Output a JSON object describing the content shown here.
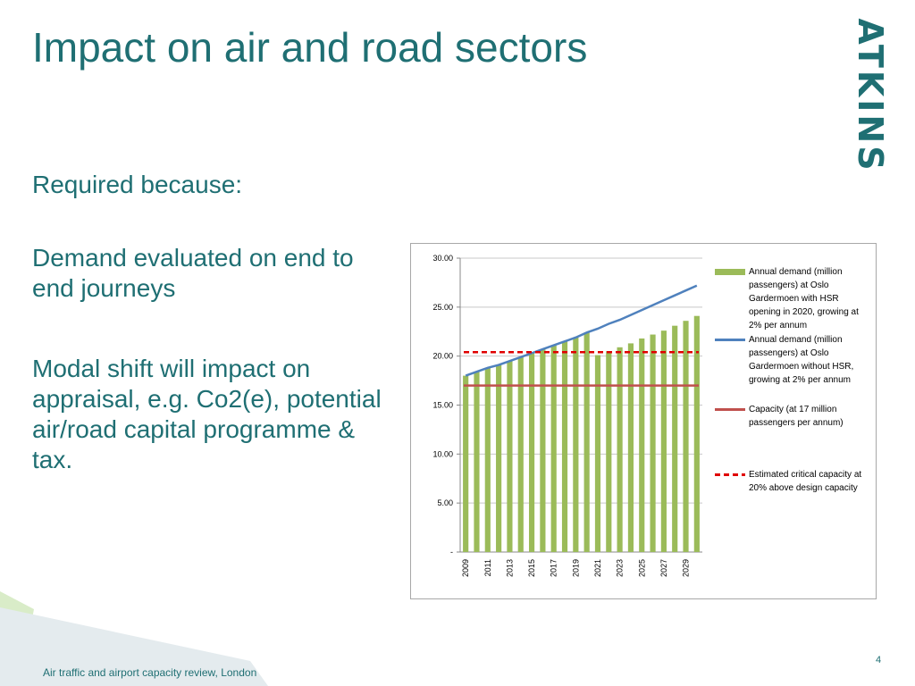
{
  "slide": {
    "title": "Impact on air and road sectors",
    "logo_text": "ATKINS",
    "paragraphs": [
      "Required because:",
      "Demand evaluated on end to end journeys",
      "Modal shift will impact on appraisal, e.g. Co2(e), potential air/road capital programme & tax."
    ],
    "footer": "Air traffic and airport capacity review, London",
    "page_number": "4",
    "colors": {
      "accent": "#1f6f73",
      "bars": "#9bbb59",
      "line_blue": "#4f81bd",
      "capacity": "#c0504d",
      "critical": "#e00000"
    }
  },
  "chart_data": {
    "type": "bar",
    "categories": [
      "2009",
      "2010",
      "2011",
      "2012",
      "2013",
      "2014",
      "2015",
      "2016",
      "2017",
      "2018",
      "2019",
      "2020",
      "2021",
      "2022",
      "2023",
      "2024",
      "2025",
      "2026",
      "2027",
      "2028",
      "2029",
      "2030"
    ],
    "x_tick_labels": [
      "2009",
      "2011",
      "2013",
      "2015",
      "2017",
      "2019",
      "2021",
      "2023",
      "2025",
      "2027",
      "2029"
    ],
    "y_tick_labels": [
      "30.00",
      "25.00",
      "20.00",
      "15.00",
      "10.00",
      "5.00",
      "-"
    ],
    "ylim": [
      0,
      30
    ],
    "series": [
      {
        "name": "Annual demand (million passengers) at Oslo Gardermoen with HSR opening in 2020, growing at 2% per annum",
        "kind": "bar",
        "color": "#9bbb59",
        "values": [
          18.0,
          18.4,
          18.8,
          19.1,
          19.5,
          19.9,
          20.3,
          20.7,
          21.1,
          21.5,
          21.9,
          22.4,
          20.1,
          20.5,
          20.9,
          21.3,
          21.8,
          22.2,
          22.6,
          23.1,
          23.6,
          24.1
        ]
      },
      {
        "name": "Annual demand (million passengers) at Oslo Gardermoen without HSR, growing at 2% per annum",
        "kind": "line",
        "color": "#4f81bd",
        "values": [
          18.0,
          18.4,
          18.8,
          19.1,
          19.5,
          19.9,
          20.3,
          20.7,
          21.1,
          21.5,
          21.9,
          22.4,
          22.8,
          23.3,
          23.7,
          24.2,
          24.7,
          25.2,
          25.7,
          26.2,
          26.7,
          27.2
        ]
      },
      {
        "name": "Capacity (at 17 million passengers per annum)",
        "kind": "line",
        "color": "#c0504d",
        "values": [
          17,
          17,
          17,
          17,
          17,
          17,
          17,
          17,
          17,
          17,
          17,
          17,
          17,
          17,
          17,
          17,
          17,
          17,
          17,
          17,
          17,
          17
        ]
      },
      {
        "name": "Estimated critical capacity at 20% above design capacity",
        "kind": "dashed",
        "color": "#e00000",
        "values": [
          20.4,
          20.4,
          20.4,
          20.4,
          20.4,
          20.4,
          20.4,
          20.4,
          20.4,
          20.4,
          20.4,
          20.4,
          20.4,
          20.4,
          20.4,
          20.4,
          20.4,
          20.4,
          20.4,
          20.4,
          20.4,
          20.4
        ]
      }
    ],
    "grid": true,
    "legend_position": "right"
  }
}
